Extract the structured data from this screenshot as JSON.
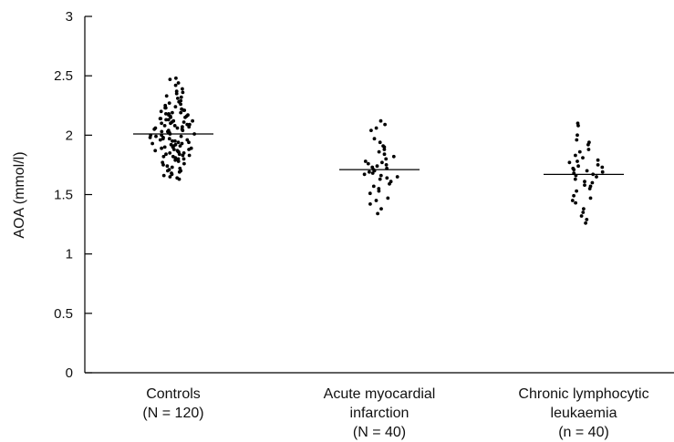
{
  "chart_data": {
    "type": "scatter",
    "subtype": "dot-plot",
    "ylabel": "AOA (mmol/l)",
    "xlabel": "",
    "ylim": [
      0,
      3
    ],
    "yticks": [
      0,
      0.5,
      1,
      1.5,
      2,
      2.5,
      3
    ],
    "ytick_labels": [
      "0",
      "0.5",
      "1",
      "1.5",
      "2",
      "2.5",
      "3"
    ],
    "grid": false,
    "legend": "none",
    "colors": {
      "points": "#000000",
      "axis": "#000000",
      "mean_line": "#000000"
    },
    "groups": [
      {
        "label_lines": [
          "Controls",
          "(N = 120)"
        ],
        "mean": 2.01,
        "values": [
          2.48,
          2.47,
          2.42,
          2.39,
          2.37,
          2.35,
          2.33,
          2.32,
          2.31,
          2.29,
          2.28,
          2.27,
          2.26,
          2.25,
          2.24,
          2.23,
          2.23,
          2.22,
          2.21,
          2.21,
          2.2,
          2.19,
          2.19,
          2.18,
          2.18,
          2.17,
          2.17,
          2.16,
          2.16,
          2.15,
          2.15,
          2.14,
          2.14,
          2.13,
          2.13,
          2.12,
          2.12,
          2.11,
          2.11,
          2.1,
          2.1,
          2.09,
          2.09,
          2.08,
          2.08,
          2.07,
          2.07,
          2.06,
          2.06,
          2.05,
          2.05,
          2.04,
          2.04,
          2.03,
          2.03,
          2.02,
          2.02,
          2.01,
          2.01,
          2.0,
          2.0,
          1.99,
          1.99,
          1.98,
          1.98,
          1.97,
          1.97,
          1.96,
          1.96,
          1.95,
          1.95,
          1.94,
          1.94,
          1.93,
          1.93,
          1.92,
          1.92,
          1.91,
          1.91,
          1.9,
          1.9,
          1.89,
          1.89,
          1.88,
          1.88,
          1.87,
          1.87,
          1.86,
          1.86,
          1.85,
          1.85,
          1.84,
          1.84,
          1.83,
          1.83,
          1.82,
          1.82,
          1.81,
          1.8,
          1.8,
          1.79,
          1.78,
          1.77,
          1.76,
          1.75,
          1.74,
          1.73,
          1.72,
          1.71,
          1.7,
          1.7,
          1.69,
          1.68,
          1.67,
          1.66,
          1.65,
          1.64,
          1.63,
          2.44,
          2.36
        ]
      },
      {
        "label_lines": [
          "Acute myocardial",
          "infarction",
          "(N = 40)"
        ],
        "mean": 1.71,
        "values": [
          2.12,
          2.09,
          2.06,
          2.04,
          1.97,
          1.94,
          1.91,
          1.9,
          1.88,
          1.86,
          1.84,
          1.82,
          1.8,
          1.78,
          1.77,
          1.76,
          1.75,
          1.74,
          1.73,
          1.72,
          1.71,
          1.7,
          1.69,
          1.68,
          1.67,
          1.66,
          1.65,
          1.64,
          1.63,
          1.61,
          1.59,
          1.57,
          1.55,
          1.53,
          1.51,
          1.47,
          1.45,
          1.42,
          1.38,
          1.34
        ]
      },
      {
        "label_lines": [
          "Chronic lymphocytic",
          "leukaemia",
          "(n = 40)"
        ],
        "mean": 1.67,
        "values": [
          2.1,
          2.08,
          2.0,
          1.96,
          1.94,
          1.92,
          1.88,
          1.86,
          1.83,
          1.81,
          1.79,
          1.78,
          1.77,
          1.75,
          1.74,
          1.73,
          1.72,
          1.71,
          1.7,
          1.69,
          1.68,
          1.67,
          1.66,
          1.65,
          1.63,
          1.61,
          1.6,
          1.58,
          1.57,
          1.55,
          1.53,
          1.49,
          1.47,
          1.45,
          1.43,
          1.38,
          1.35,
          1.32,
          1.29,
          1.26
        ]
      }
    ]
  }
}
